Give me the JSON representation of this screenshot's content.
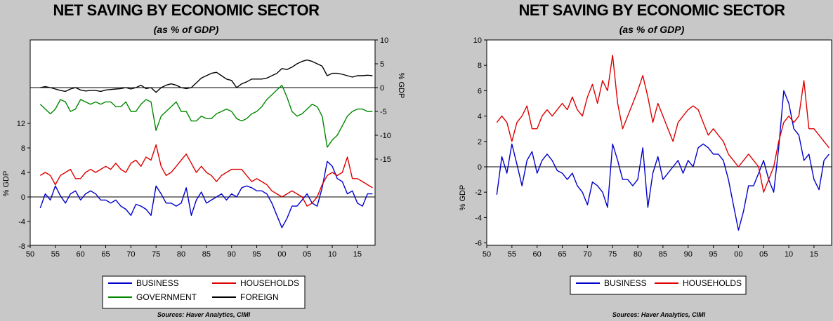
{
  "charts": [
    {
      "id": "left",
      "title": "NET SAVING BY ECONOMIC SECTOR",
      "subtitle": "(as % of GDP)",
      "source": "Sources: Haver Analytics, CIMI",
      "left_axis_label": "% GDP",
      "right_axis_label": "% GDP",
      "legend": [
        {
          "name": "BUSINESS",
          "color": "#0000cc"
        },
        {
          "name": "HOUSEHOLDS",
          "color": "#dd0000"
        },
        {
          "name": "GOVERNMENT",
          "color": "#008800"
        },
        {
          "name": "FOREIGN",
          "color": "#000000"
        }
      ]
    },
    {
      "id": "right",
      "title": "NET SAVING BY ECONOMIC SECTOR",
      "subtitle": "(as % of GDP)",
      "source": "Sources: Haver Analytics, CIMI",
      "left_axis_label": "% GDP",
      "legend": [
        {
          "name": "BUSINESS",
          "color": "#0000cc"
        },
        {
          "name": "HOUSEHOLDS",
          "color": "#dd0000"
        }
      ]
    }
  ],
  "chart_data": [
    {
      "type": "line",
      "title": "NET SAVING BY ECONOMIC SECTOR",
      "subtitle": "(as % of GDP)",
      "x_ticks": [
        "50",
        "55",
        "60",
        "65",
        "70",
        "75",
        "80",
        "85",
        "90",
        "95",
        "00",
        "05",
        "10",
        "15"
      ],
      "x_range": [
        1950,
        2018.5
      ],
      "left_axis": {
        "label": "% GDP",
        "ticks": [
          -8,
          -4,
          0,
          4,
          8,
          12
        ]
      },
      "right_axis": {
        "label": "% GDP",
        "ticks": [
          -15,
          -10,
          -5,
          0,
          5,
          10
        ]
      },
      "series": [
        {
          "name": "BUSINESS",
          "axis": "left",
          "color": "#0000cc",
          "x": [
            1952,
            1953,
            1954,
            1955,
            1956,
            1957,
            1958,
            1959,
            1960,
            1961,
            1962,
            1963,
            1964,
            1965,
            1966,
            1967,
            1968,
            1969,
            1970,
            1971,
            1972,
            1973,
            1974,
            1975,
            1976,
            1977,
            1978,
            1979,
            1980,
            1981,
            1982,
            1983,
            1984,
            1985,
            1986,
            1987,
            1988,
            1989,
            1990,
            1991,
            1992,
            1993,
            1994,
            1995,
            1996,
            1997,
            1998,
            1999,
            2000,
            2001,
            2002,
            2003,
            2004,
            2005,
            2006,
            2007,
            2008,
            2009,
            2010,
            2011,
            2012,
            2013,
            2014,
            2015,
            2016,
            2017,
            2018
          ],
          "y": [
            -1.8,
            0.5,
            -0.5,
            1.8,
            0.2,
            -1.0,
            0.5,
            1.0,
            -0.5,
            0.5,
            1.0,
            0.5,
            -0.5,
            -0.5,
            -1.0,
            -0.5,
            -1.5,
            -2.0,
            -3.0,
            -1.2,
            -1.5,
            -2.0,
            -3.0,
            1.8,
            0.5,
            -1.0,
            -1.0,
            -1.5,
            -1.0,
            1.5,
            -3.0,
            -0.5,
            0.8,
            -1.0,
            -0.5,
            0.0,
            0.5,
            -0.5,
            0.5,
            0.0,
            1.5,
            1.8,
            1.5,
            1.0,
            1.0,
            0.5,
            -1.0,
            -3.0,
            -5.0,
            -3.5,
            -1.5,
            -1.5,
            -0.5,
            0.5,
            -1.0,
            -1.5,
            1.5,
            5.8,
            5.0,
            3.0,
            2.5,
            0.5,
            1.0,
            -1.0,
            -1.5,
            0.5,
            0.5
          ]
        },
        {
          "name": "HOUSEHOLDS",
          "axis": "left",
          "color": "#dd0000",
          "x": [
            1952,
            1953,
            1954,
            1955,
            1956,
            1957,
            1958,
            1959,
            1960,
            1961,
            1962,
            1963,
            1964,
            1965,
            1966,
            1967,
            1968,
            1969,
            1970,
            1971,
            1972,
            1973,
            1974,
            1975,
            1976,
            1977,
            1978,
            1979,
            1980,
            1981,
            1982,
            1983,
            1984,
            1985,
            1986,
            1987,
            1988,
            1989,
            1990,
            1991,
            1992,
            1993,
            1994,
            1995,
            1996,
            1997,
            1998,
            1999,
            2000,
            2001,
            2002,
            2003,
            2004,
            2005,
            2006,
            2007,
            2008,
            2009,
            2010,
            2011,
            2012,
            2013,
            2014,
            2015,
            2016,
            2017,
            2018
          ],
          "y": [
            3.5,
            4.0,
            3.5,
            2.0,
            3.5,
            4.0,
            4.5,
            3.0,
            3.0,
            4.0,
            4.5,
            4.0,
            4.5,
            5.0,
            4.5,
            5.5,
            4.5,
            4.0,
            5.5,
            6.0,
            5.0,
            6.5,
            6.0,
            8.5,
            5.0,
            3.5,
            4.0,
            5.0,
            6.0,
            7.0,
            5.5,
            4.0,
            5.0,
            4.0,
            3.5,
            2.5,
            3.5,
            4.0,
            4.5,
            4.5,
            4.5,
            3.5,
            2.5,
            3.0,
            2.5,
            2.0,
            1.0,
            0.5,
            0.0,
            0.5,
            1.0,
            0.5,
            0.0,
            -1.5,
            -1.0,
            0.0,
            2.0,
            3.5,
            4.0,
            3.5,
            4.0,
            6.5,
            3.0,
            3.0,
            2.5,
            2.0,
            1.5
          ]
        },
        {
          "name": "GOVERNMENT",
          "axis": "right",
          "color": "#008800",
          "x": [
            1952,
            1953,
            1954,
            1955,
            1956,
            1957,
            1958,
            1959,
            1960,
            1961,
            1962,
            1963,
            1964,
            1965,
            1966,
            1967,
            1968,
            1969,
            1970,
            1971,
            1972,
            1973,
            1974,
            1975,
            1976,
            1977,
            1978,
            1979,
            1980,
            1981,
            1982,
            1983,
            1984,
            1985,
            1986,
            1987,
            1988,
            1989,
            1990,
            1991,
            1992,
            1993,
            1994,
            1995,
            1996,
            1997,
            1998,
            1999,
            2000,
            2001,
            2002,
            2003,
            2004,
            2005,
            2006,
            2007,
            2008,
            2009,
            2010,
            2011,
            2012,
            2013,
            2014,
            2015,
            2016,
            2017,
            2018
          ],
          "y": [
            -3.5,
            -4.5,
            -5.5,
            -4.5,
            -2.5,
            -3.0,
            -5.0,
            -4.5,
            -2.5,
            -3.0,
            -3.5,
            -3.0,
            -3.5,
            -3.0,
            -3.0,
            -4.0,
            -4.0,
            -3.0,
            -5.0,
            -5.0,
            -3.5,
            -2.5,
            -3.0,
            -9.0,
            -6.0,
            -5.0,
            -4.0,
            -3.0,
            -5.0,
            -5.0,
            -7.0,
            -7.0,
            -6.0,
            -6.5,
            -6.5,
            -5.5,
            -5.0,
            -4.5,
            -5.0,
            -6.5,
            -7.0,
            -6.5,
            -5.5,
            -5.0,
            -4.0,
            -2.5,
            -1.5,
            -0.5,
            0.5,
            -2.0,
            -5.0,
            -6.0,
            -5.5,
            -4.5,
            -3.5,
            -4.0,
            -6.0,
            -12.5,
            -11.0,
            -10.0,
            -8.0,
            -6.0,
            -5.0,
            -4.5,
            -4.5,
            -5.0,
            -5.0
          ]
        },
        {
          "name": "FOREIGN",
          "axis": "right",
          "color": "#000000",
          "x": [
            1952,
            1953,
            1954,
            1955,
            1956,
            1957,
            1958,
            1959,
            1960,
            1961,
            1962,
            1963,
            1964,
            1965,
            1966,
            1967,
            1968,
            1969,
            1970,
            1971,
            1972,
            1973,
            1974,
            1975,
            1976,
            1977,
            1978,
            1979,
            1980,
            1981,
            1982,
            1983,
            1984,
            1985,
            1986,
            1987,
            1988,
            1989,
            1990,
            1991,
            1992,
            1993,
            1994,
            1995,
            1996,
            1997,
            1998,
            1999,
            2000,
            2001,
            2002,
            2003,
            2004,
            2005,
            2006,
            2007,
            2008,
            2009,
            2010,
            2011,
            2012,
            2013,
            2014,
            2015,
            2016,
            2017,
            2018
          ],
          "y": [
            0.0,
            0.2,
            0.0,
            -0.3,
            -0.6,
            -0.8,
            -0.3,
            0.0,
            -0.5,
            -0.7,
            -0.6,
            -0.6,
            -0.8,
            -0.5,
            -0.4,
            -0.3,
            -0.2,
            0.0,
            -0.3,
            0.0,
            0.5,
            -0.2,
            0.0,
            -1.0,
            0.0,
            0.5,
            0.8,
            0.5,
            0.0,
            -0.2,
            0.0,
            1.0,
            2.0,
            2.5,
            3.0,
            3.2,
            2.5,
            1.8,
            1.5,
            0.0,
            0.8,
            1.2,
            1.8,
            1.8,
            1.8,
            2.0,
            2.5,
            3.0,
            4.0,
            3.8,
            4.3,
            5.0,
            5.5,
            5.8,
            5.5,
            5.0,
            4.5,
            2.5,
            3.0,
            3.0,
            2.8,
            2.5,
            2.2,
            2.5,
            2.5,
            2.6,
            2.5
          ]
        }
      ]
    },
    {
      "type": "line",
      "title": "NET SAVING BY ECONOMIC SECTOR",
      "subtitle": "(as % of GDP)",
      "x_ticks": [
        "50",
        "55",
        "60",
        "65",
        "70",
        "75",
        "80",
        "85",
        "90",
        "95",
        "00",
        "05",
        "10",
        "15"
      ],
      "x_range": [
        1950,
        2018.5
      ],
      "left_axis": {
        "label": "% GDP",
        "ticks": [
          -6,
          -4,
          -2,
          0,
          2,
          4,
          6,
          8,
          10
        ]
      },
      "series": [
        {
          "name": "BUSINESS",
          "axis": "left",
          "color": "#0000cc",
          "x": [
            1952,
            1953,
            1954,
            1955,
            1956,
            1957,
            1958,
            1959,
            1960,
            1961,
            1962,
            1963,
            1964,
            1965,
            1966,
            1967,
            1968,
            1969,
            1970,
            1971,
            1972,
            1973,
            1974,
            1975,
            1976,
            1977,
            1978,
            1979,
            1980,
            1981,
            1982,
            1983,
            1984,
            1985,
            1986,
            1987,
            1988,
            1989,
            1990,
            1991,
            1992,
            1993,
            1994,
            1995,
            1996,
            1997,
            1998,
            1999,
            2000,
            2001,
            2002,
            2003,
            2004,
            2005,
            2006,
            2007,
            2008,
            2009,
            2010,
            2011,
            2012,
            2013,
            2014,
            2015,
            2016,
            2017,
            2018
          ],
          "y": [
            -2.2,
            0.8,
            -0.5,
            1.8,
            0.2,
            -1.5,
            0.5,
            1.2,
            -0.5,
            0.5,
            1.0,
            0.5,
            -0.3,
            -0.5,
            -1.0,
            -0.5,
            -1.5,
            -2.0,
            -3.0,
            -1.2,
            -1.5,
            -2.0,
            -3.2,
            1.8,
            0.5,
            -1.0,
            -1.0,
            -1.5,
            -1.0,
            1.5,
            -3.2,
            -0.5,
            0.8,
            -1.0,
            -0.5,
            0.0,
            0.5,
            -0.5,
            0.5,
            0.0,
            1.5,
            1.8,
            1.5,
            1.0,
            1.0,
            0.5,
            -1.0,
            -3.0,
            -5.0,
            -3.5,
            -1.5,
            -1.5,
            -0.5,
            0.5,
            -1.0,
            -2.0,
            1.5,
            6.0,
            5.0,
            3.0,
            2.5,
            0.5,
            1.0,
            -1.0,
            -1.8,
            0.5,
            1.0
          ]
        },
        {
          "name": "HOUSEHOLDS",
          "axis": "left",
          "color": "#dd0000",
          "x": [
            1952,
            1953,
            1954,
            1955,
            1956,
            1957,
            1958,
            1959,
            1960,
            1961,
            1962,
            1963,
            1964,
            1965,
            1966,
            1967,
            1968,
            1969,
            1970,
            1971,
            1972,
            1973,
            1974,
            1975,
            1976,
            1977,
            1978,
            1979,
            1980,
            1981,
            1982,
            1983,
            1984,
            1985,
            1986,
            1987,
            1988,
            1989,
            1990,
            1991,
            1992,
            1993,
            1994,
            1995,
            1996,
            1997,
            1998,
            1999,
            2000,
            2001,
            2002,
            2003,
            2004,
            2005,
            2006,
            2007,
            2008,
            2009,
            2010,
            2011,
            2012,
            2013,
            2014,
            2015,
            2016,
            2017,
            2018
          ],
          "y": [
            3.5,
            4.0,
            3.5,
            2.0,
            3.5,
            4.0,
            4.8,
            3.0,
            3.0,
            4.0,
            4.5,
            4.0,
            4.5,
            5.0,
            4.5,
            5.5,
            4.5,
            4.0,
            5.5,
            6.5,
            5.0,
            6.8,
            6.0,
            8.8,
            5.0,
            3.0,
            4.0,
            5.0,
            6.0,
            7.2,
            5.5,
            3.5,
            5.0,
            4.0,
            3.0,
            2.0,
            3.5,
            4.0,
            4.5,
            4.8,
            4.5,
            3.5,
            2.5,
            3.0,
            2.5,
            2.0,
            1.0,
            0.5,
            0.0,
            0.5,
            1.0,
            0.5,
            0.0,
            -2.0,
            -1.0,
            0.0,
            2.0,
            3.5,
            4.0,
            3.5,
            4.0,
            6.8,
            3.0,
            3.0,
            2.5,
            2.0,
            1.5
          ]
        }
      ]
    }
  ]
}
